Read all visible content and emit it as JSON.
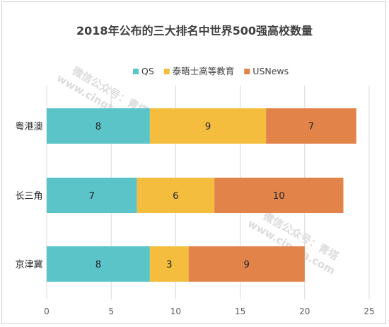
{
  "chart_data": {
    "type": "bar",
    "orientation": "horizontal",
    "stacked": true,
    "title": "2018年公布的三大排名中世界500强高校数量",
    "categories": [
      "粤港澳",
      "长三角",
      "京津冀"
    ],
    "series": [
      {
        "name": "QS",
        "color": "#5bc4c9",
        "values": [
          8,
          7,
          8
        ]
      },
      {
        "name": "泰晤士高等教育",
        "color": "#f5bd3e",
        "values": [
          9,
          6,
          3
        ]
      },
      {
        "name": "USNews",
        "color": "#e2834a",
        "values": [
          7,
          10,
          9
        ]
      }
    ],
    "xlim": [
      0,
      25
    ],
    "xticks": [
      0,
      5,
      10,
      15,
      20,
      25
    ],
    "grid": "vertical",
    "legend": "top-center",
    "data_labels": true
  },
  "watermark": {
    "text": "微信公众号：青塔",
    "url": "www.cingta.com"
  }
}
